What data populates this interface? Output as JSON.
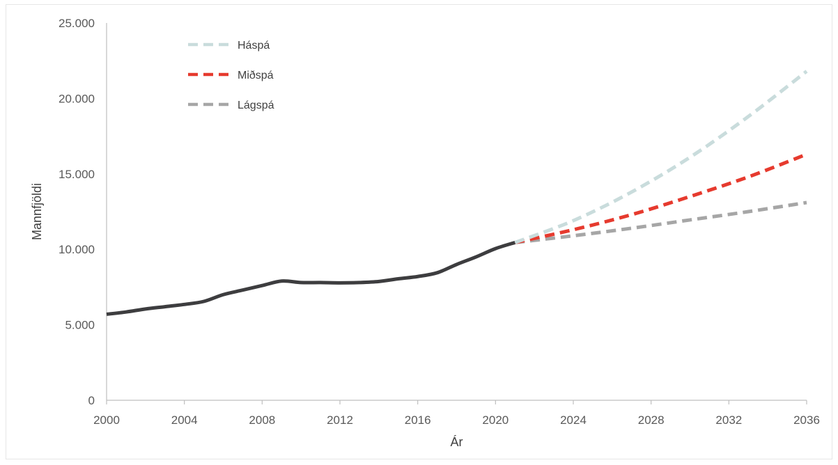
{
  "chart_data": {
    "type": "line",
    "xlabel": "Ár",
    "ylabel": "Mannfjöldi",
    "xlim": [
      2000,
      2036
    ],
    "ylim": [
      0,
      25000
    ],
    "x_ticks": [
      2000,
      2004,
      2008,
      2012,
      2016,
      2020,
      2024,
      2028,
      2032,
      2036
    ],
    "x_tick_labels": [
      "2000",
      "2004",
      "2008",
      "2012",
      "2016",
      "2020",
      "2024",
      "2028",
      "2032",
      "2036"
    ],
    "y_ticks": [
      0,
      5000,
      10000,
      15000,
      20000,
      25000
    ],
    "y_tick_labels": [
      "0",
      "5.000",
      "10.000",
      "15.000",
      "20.000",
      "25.000"
    ],
    "grid": false,
    "legend_position": "top-left",
    "legend": [
      {
        "label": "Háspá",
        "color": "#c9dcdc"
      },
      {
        "label": "Miðspá",
        "color": "#e63a2e"
      },
      {
        "label": "Lágspá",
        "color": "#a6a6a6"
      }
    ],
    "series": [
      {
        "color": "#3d3d3f",
        "style": "solid",
        "x": [
          2000,
          2001,
          2002,
          2003,
          2004,
          2005,
          2006,
          2007,
          2008,
          2009,
          2010,
          2011,
          2012,
          2013,
          2014,
          2015,
          2016,
          2017,
          2018,
          2019,
          2020,
          2021
        ],
        "y": [
          5700,
          5850,
          6050,
          6200,
          6350,
          6550,
          7000,
          7300,
          7600,
          7900,
          7800,
          7800,
          7780,
          7800,
          7870,
          8050,
          8200,
          8450,
          9000,
          9500,
          10050,
          10450
        ]
      },
      {
        "name": "Háspá",
        "color": "#c9dcdc",
        "style": "dashed",
        "x": [
          2021,
          2024,
          2027,
          2030,
          2033,
          2036
        ],
        "y": [
          10450,
          11900,
          13800,
          16100,
          18800,
          21800
        ]
      },
      {
        "name": "Miðspá",
        "color": "#e63a2e",
        "style": "dashed",
        "x": [
          2021,
          2024,
          2027,
          2030,
          2033,
          2036
        ],
        "y": [
          10450,
          11300,
          12300,
          13500,
          14800,
          16300
        ]
      },
      {
        "name": "Lágspá",
        "color": "#a6a6a6",
        "style": "dashed",
        "x": [
          2021,
          2024,
          2027,
          2030,
          2033,
          2036
        ],
        "y": [
          10450,
          10900,
          11400,
          11950,
          12500,
          13100
        ]
      }
    ]
  }
}
